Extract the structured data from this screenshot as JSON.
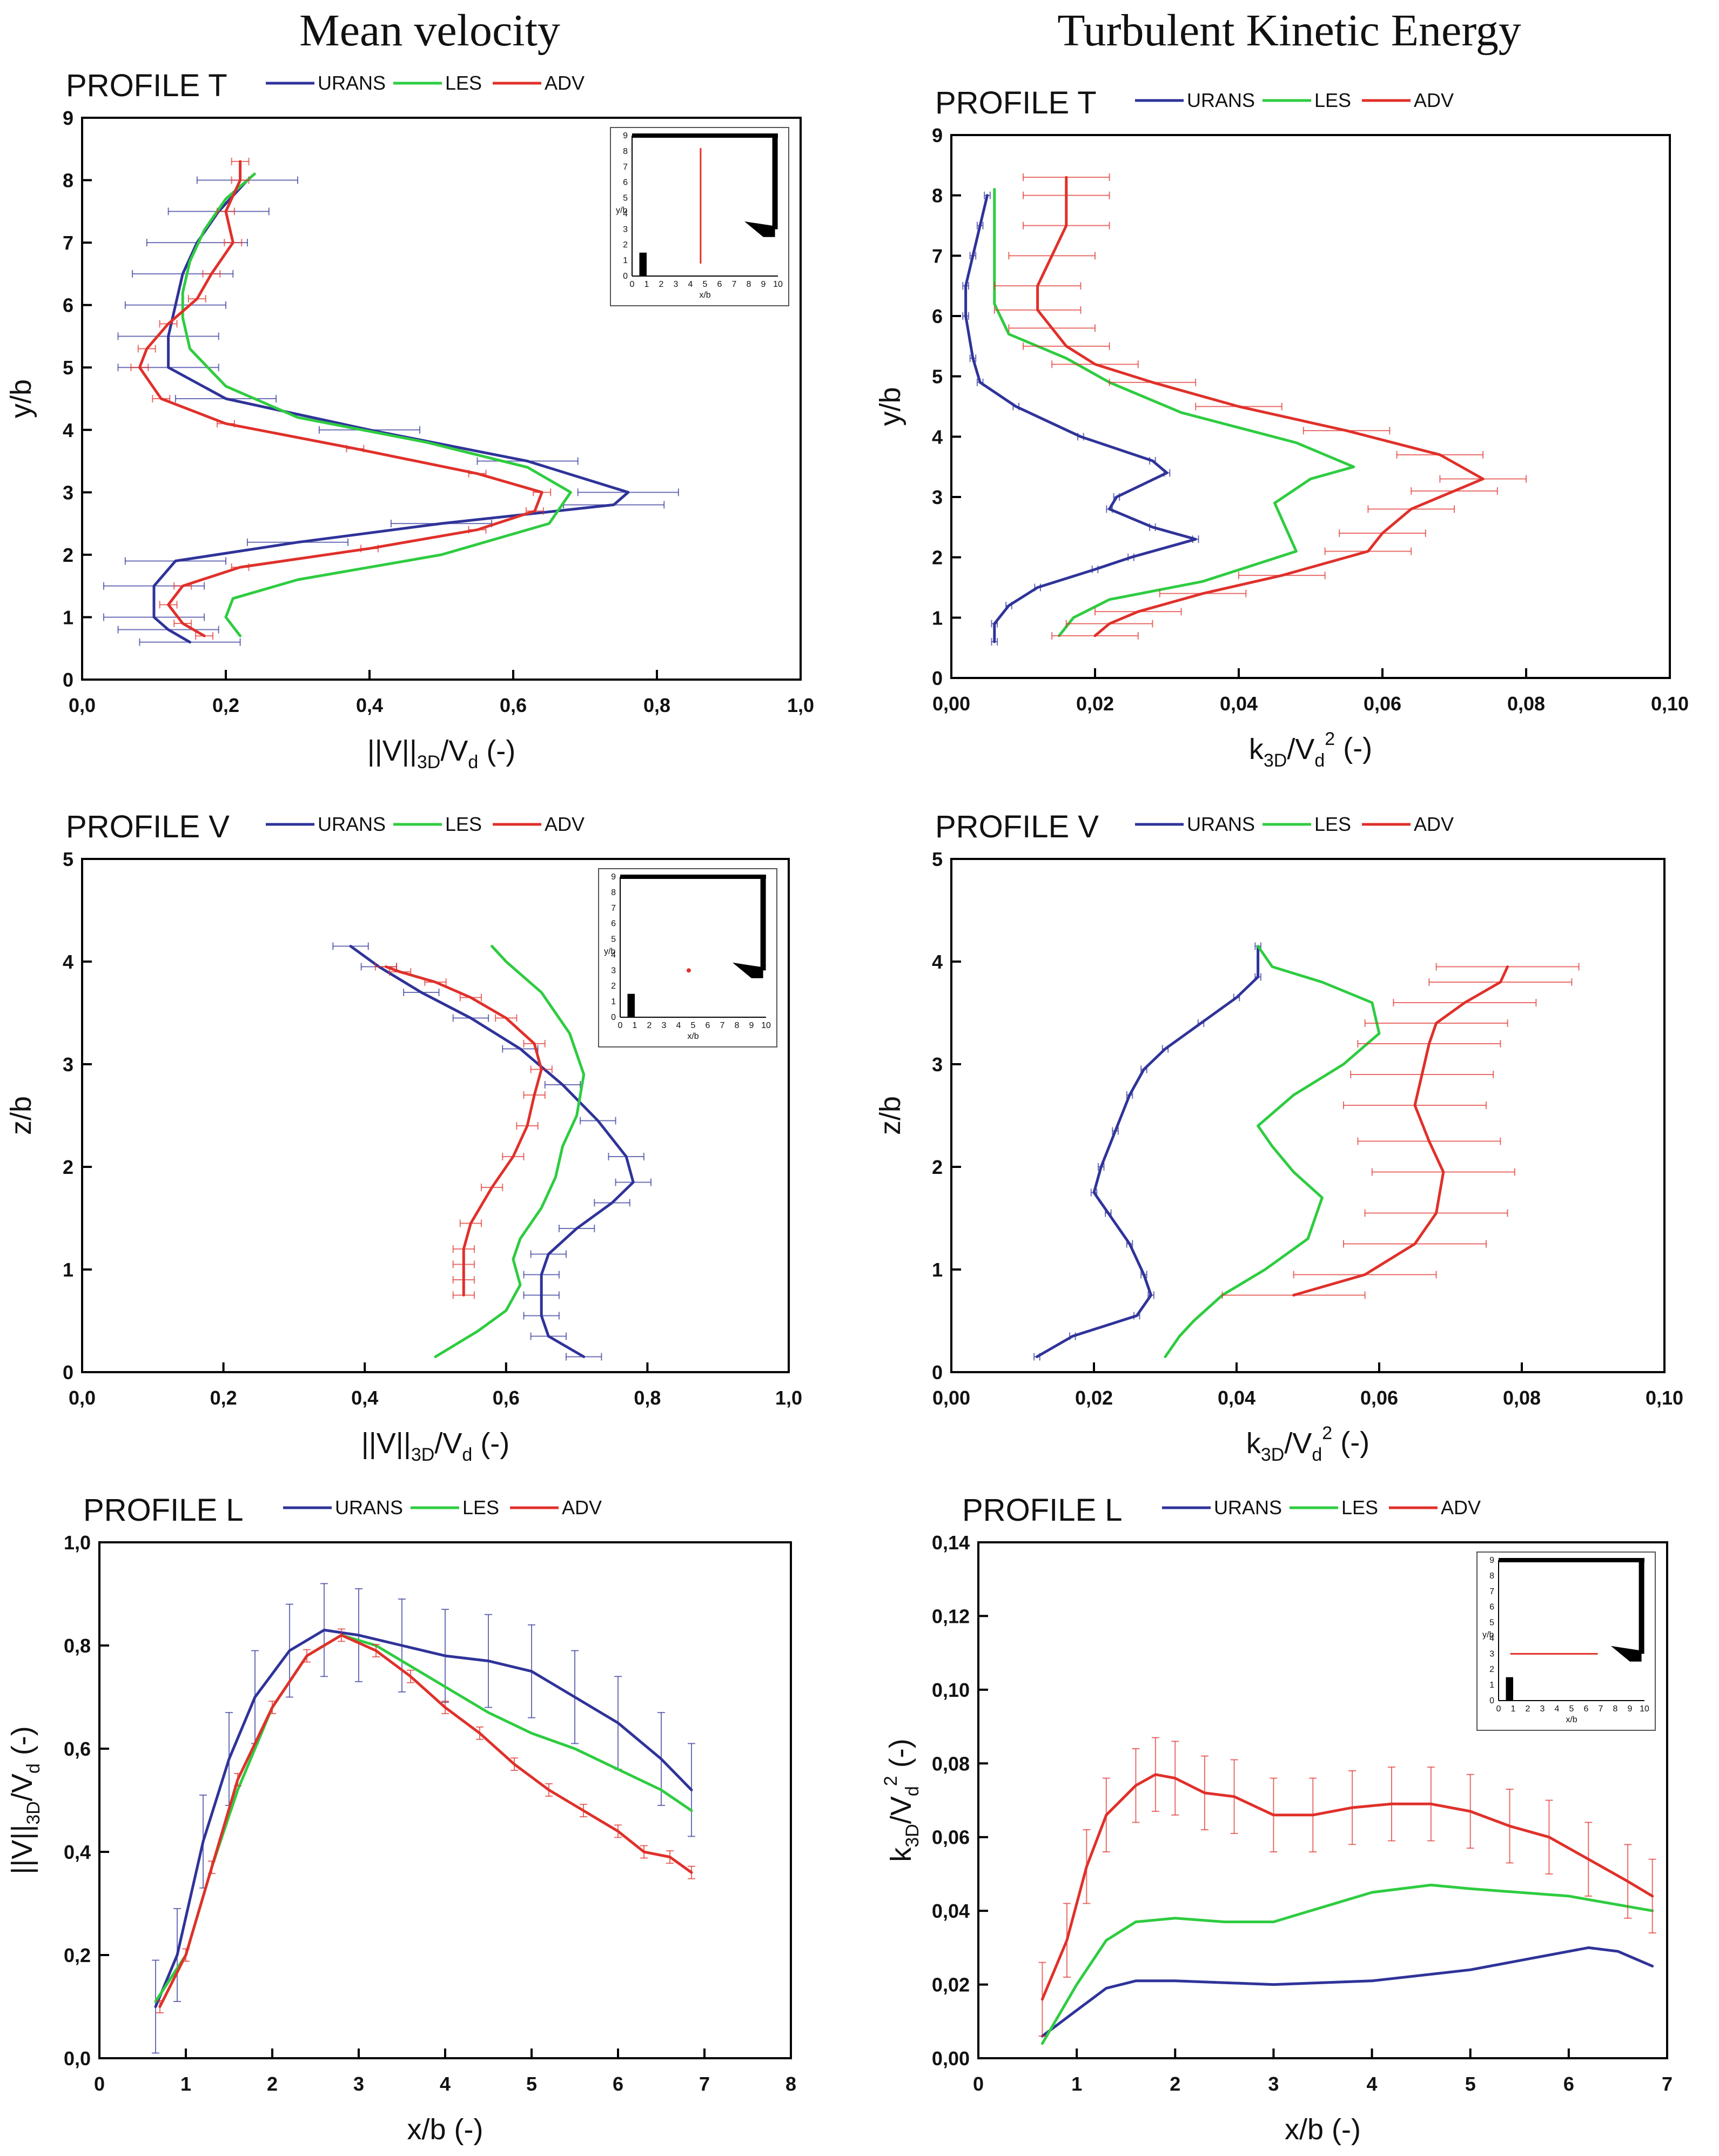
{
  "headers": {
    "left": "Mean velocity",
    "right": "Turbulent Kinetic Energy"
  },
  "colors": {
    "URANS": "#2f3399",
    "LES": "#2ecc40",
    "ADV": "#e0302a"
  },
  "chart_data": [
    {
      "id": "p0",
      "type": "line",
      "title": "PROFILE  T",
      "orientation": "profile",
      "xlabel": "||V||3D/Vd (-)",
      "ylabel": "y/b",
      "xlim": [
        0,
        1.0
      ],
      "ylim": [
        0,
        9
      ],
      "xticks": [
        "0,0",
        "0,2",
        "0,4",
        "0,6",
        "0,8",
        "1,0"
      ],
      "xtickvals": [
        0,
        0.2,
        0.4,
        0.6,
        0.8,
        1.0
      ],
      "yticks": [
        "0",
        "1",
        "2",
        "3",
        "4",
        "5",
        "6",
        "7",
        "8",
        "9"
      ],
      "ytickvals": [
        0,
        1,
        2,
        3,
        4,
        5,
        6,
        7,
        8,
        9
      ],
      "legend": [
        "URANS",
        "LES",
        "ADV"
      ],
      "inset": {
        "type": "T",
        "ylabel": "y/b",
        "xlabel": "x/b"
      },
      "series": [
        {
          "name": "URANS",
          "errors": true,
          "err": 0.07,
          "x": [
            0.15,
            0.12,
            0.1,
            0.1,
            0.13,
            0.3,
            0.5,
            0.74,
            0.76,
            0.62,
            0.4,
            0.2,
            0.12,
            0.12,
            0.13,
            0.14,
            0.16,
            0.19,
            0.23
          ],
          "y": [
            0.6,
            0.8,
            1.0,
            1.5,
            1.9,
            2.2,
            2.5,
            2.8,
            3.0,
            3.5,
            4.0,
            4.5,
            5.0,
            5.5,
            6.0,
            6.5,
            7.0,
            7.5,
            8.0
          ]
        },
        {
          "name": "LES",
          "errors": false,
          "x": [
            0.22,
            0.2,
            0.21,
            0.3,
            0.5,
            0.65,
            0.68,
            0.62,
            0.48,
            0.3,
            0.2,
            0.15,
            0.14,
            0.14,
            0.15,
            0.17,
            0.2,
            0.24
          ],
          "y": [
            0.7,
            1.0,
            1.3,
            1.6,
            2.0,
            2.5,
            3.0,
            3.4,
            3.8,
            4.2,
            4.7,
            5.3,
            5.8,
            6.2,
            6.7,
            7.2,
            7.7,
            8.1
          ]
        },
        {
          "name": "ADV",
          "errors": true,
          "err": 0.012,
          "x": [
            0.17,
            0.14,
            0.12,
            0.14,
            0.22,
            0.4,
            0.55,
            0.63,
            0.64,
            0.55,
            0.38,
            0.2,
            0.11,
            0.08,
            0.09,
            0.12,
            0.16,
            0.18,
            0.21,
            0.2,
            0.22,
            0.22
          ],
          "y": [
            0.7,
            0.9,
            1.2,
            1.5,
            1.8,
            2.1,
            2.4,
            2.7,
            3.0,
            3.3,
            3.7,
            4.1,
            4.5,
            5.0,
            5.3,
            5.7,
            6.1,
            6.5,
            7.0,
            7.5,
            8.0,
            8.3
          ]
        }
      ]
    },
    {
      "id": "p1",
      "type": "line",
      "title": "PROFILE  T",
      "orientation": "profile",
      "xlabel": "k3D/Vd² (-)",
      "ylabel": "y/b",
      "xlim": [
        0,
        0.1
      ],
      "ylim": [
        0,
        9
      ],
      "xticks": [
        "0,00",
        "0,02",
        "0,04",
        "0,06",
        "0,08",
        "0,10"
      ],
      "xtickvals": [
        0,
        0.02,
        0.04,
        0.06,
        0.08,
        0.1
      ],
      "yticks": [
        "0",
        "1",
        "2",
        "3",
        "4",
        "5",
        "6",
        "7",
        "8",
        "9"
      ],
      "ytickvals": [
        0,
        1,
        2,
        3,
        4,
        5,
        6,
        7,
        8,
        9
      ],
      "legend": [
        "URANS",
        "LES",
        "ADV"
      ],
      "series": [
        {
          "name": "URANS",
          "errors": true,
          "err": 0.0004,
          "x": [
            0.006,
            0.006,
            0.008,
            0.012,
            0.02,
            0.025,
            0.034,
            0.028,
            0.022,
            0.023,
            0.03,
            0.028,
            0.018,
            0.009,
            0.004,
            0.003,
            0.002,
            0.002,
            0.003,
            0.004,
            0.005
          ],
          "y": [
            0.6,
            0.9,
            1.2,
            1.5,
            1.8,
            2.0,
            2.3,
            2.5,
            2.8,
            3.0,
            3.4,
            3.6,
            4.0,
            4.5,
            4.9,
            5.3,
            6.0,
            6.5,
            7.0,
            7.5,
            8.0
          ]
        },
        {
          "name": "LES",
          "errors": false,
          "x": [
            0.015,
            0.017,
            0.022,
            0.035,
            0.048,
            0.045,
            0.05,
            0.056,
            0.048,
            0.032,
            0.022,
            0.016,
            0.008,
            0.006,
            0.006,
            0.006
          ],
          "y": [
            0.7,
            1.0,
            1.3,
            1.6,
            2.1,
            2.9,
            3.3,
            3.5,
            3.9,
            4.4,
            4.9,
            5.3,
            5.7,
            6.2,
            7.0,
            8.1
          ]
        },
        {
          "name": "ADV",
          "errors": true,
          "err": 0.006,
          "x": [
            0.02,
            0.022,
            0.026,
            0.035,
            0.046,
            0.058,
            0.06,
            0.064,
            0.07,
            0.074,
            0.068,
            0.055,
            0.04,
            0.028,
            0.02,
            0.016,
            0.014,
            0.012,
            0.012,
            0.014,
            0.016,
            0.016,
            0.016
          ],
          "y": [
            0.7,
            0.9,
            1.1,
            1.4,
            1.7,
            2.1,
            2.4,
            2.8,
            3.1,
            3.3,
            3.7,
            4.1,
            4.5,
            4.9,
            5.2,
            5.5,
            5.8,
            6.1,
            6.5,
            7.0,
            7.5,
            8.0,
            8.3
          ]
        }
      ]
    },
    {
      "id": "p2",
      "type": "line",
      "title": "PROFILE  V",
      "orientation": "profile",
      "xlabel": "||V||3D/Vd (-)",
      "ylabel": "z/b",
      "xlim": [
        0,
        1.0
      ],
      "ylim": [
        0,
        5
      ],
      "xticks": [
        "0,0",
        "0,2",
        "0,4",
        "0,6",
        "0,8",
        "1,0"
      ],
      "xtickvals": [
        0,
        0.2,
        0.4,
        0.6,
        0.8,
        1.0
      ],
      "yticks": [
        "0",
        "1",
        "2",
        "3",
        "4",
        "5"
      ],
      "ytickvals": [
        0,
        1,
        2,
        3,
        4,
        5
      ],
      "legend": [
        "URANS",
        "LES",
        "ADV"
      ],
      "inset": {
        "type": "V",
        "ylabel": "y/b",
        "xlabel": "x/b"
      },
      "series": [
        {
          "name": "URANS",
          "errors": true,
          "err": 0.025,
          "x": [
            0.71,
            0.66,
            0.65,
            0.65,
            0.65,
            0.66,
            0.7,
            0.75,
            0.78,
            0.77,
            0.73,
            0.68,
            0.62,
            0.55,
            0.48,
            0.42,
            0.38
          ],
          "y": [
            0.15,
            0.35,
            0.55,
            0.75,
            0.95,
            1.15,
            1.4,
            1.65,
            1.85,
            2.1,
            2.45,
            2.8,
            3.15,
            3.45,
            3.7,
            3.95,
            4.15
          ]
        },
        {
          "name": "LES",
          "errors": false,
          "x": [
            0.5,
            0.56,
            0.6,
            0.62,
            0.61,
            0.62,
            0.65,
            0.67,
            0.68,
            0.7,
            0.71,
            0.69,
            0.65,
            0.6,
            0.58
          ],
          "y": [
            0.15,
            0.4,
            0.6,
            0.85,
            1.1,
            1.3,
            1.6,
            1.9,
            2.2,
            2.5,
            2.9,
            3.3,
            3.7,
            4.0,
            4.15
          ]
        },
        {
          "name": "ADV",
          "errors": true,
          "err": 0.015,
          "x": [
            0.54,
            0.54,
            0.54,
            0.54,
            0.55,
            0.58,
            0.61,
            0.63,
            0.64,
            0.65,
            0.64,
            0.6,
            0.55,
            0.5,
            0.45,
            0.43
          ],
          "y": [
            0.75,
            0.9,
            1.05,
            1.2,
            1.45,
            1.8,
            2.1,
            2.4,
            2.7,
            2.95,
            3.2,
            3.45,
            3.65,
            3.8,
            3.9,
            3.95
          ]
        }
      ]
    },
    {
      "id": "p3",
      "type": "line",
      "title": "PROFILE  V",
      "orientation": "profile",
      "xlabel": "k3D/Vd² (-)",
      "ylabel": "z/b",
      "xlim": [
        0,
        0.1
      ],
      "ylim": [
        0,
        5
      ],
      "xticks": [
        "0,00",
        "0,02",
        "0,04",
        "0,06",
        "0,08",
        "0,10"
      ],
      "xtickvals": [
        0,
        0.02,
        0.04,
        0.06,
        0.08,
        0.1
      ],
      "yticks": [
        "0",
        "1",
        "2",
        "3",
        "4",
        "5"
      ],
      "ytickvals": [
        0,
        1,
        2,
        3,
        4,
        5
      ],
      "legend": [
        "URANS",
        "LES",
        "ADV"
      ],
      "series": [
        {
          "name": "URANS",
          "errors": true,
          "err": 0.0004,
          "x": [
            0.012,
            0.017,
            0.026,
            0.028,
            0.027,
            0.025,
            0.022,
            0.02,
            0.021,
            0.023,
            0.025,
            0.027,
            0.03,
            0.035,
            0.04,
            0.043,
            0.043
          ],
          "y": [
            0.15,
            0.35,
            0.55,
            0.75,
            0.95,
            1.25,
            1.55,
            1.75,
            2.0,
            2.35,
            2.7,
            2.95,
            3.15,
            3.4,
            3.65,
            3.85,
            4.15
          ]
        },
        {
          "name": "LES",
          "errors": false,
          "x": [
            0.03,
            0.032,
            0.034,
            0.038,
            0.044,
            0.05,
            0.052,
            0.048,
            0.045,
            0.043,
            0.048,
            0.055,
            0.06,
            0.059,
            0.052,
            0.045,
            0.043
          ],
          "y": [
            0.15,
            0.35,
            0.5,
            0.75,
            1.0,
            1.3,
            1.7,
            1.95,
            2.2,
            2.4,
            2.7,
            3.0,
            3.3,
            3.6,
            3.8,
            3.95,
            4.15
          ]
        },
        {
          "name": "ADV",
          "errors": true,
          "err": 0.01,
          "x": [
            0.048,
            0.058,
            0.065,
            0.068,
            0.069,
            0.067,
            0.065,
            0.066,
            0.067,
            0.068,
            0.072,
            0.077,
            0.078
          ],
          "y": [
            0.75,
            0.95,
            1.25,
            1.55,
            1.95,
            2.25,
            2.6,
            2.9,
            3.2,
            3.4,
            3.6,
            3.8,
            3.95
          ]
        }
      ]
    },
    {
      "id": "p4",
      "type": "line",
      "title": "PROFILE  L",
      "orientation": "series",
      "xlabel": "x/b (-)",
      "ylabel": "||V||3D/Vd (-)",
      "xlim": [
        0,
        8
      ],
      "ylim": [
        0,
        1.0
      ],
      "xticks": [
        "0",
        "1",
        "2",
        "3",
        "4",
        "5",
        "6",
        "7",
        "8"
      ],
      "xtickvals": [
        0,
        1,
        2,
        3,
        4,
        5,
        6,
        7,
        8
      ],
      "yticks": [
        "0,0",
        "0,2",
        "0,4",
        "0,6",
        "0,8",
        "1,0"
      ],
      "ytickvals": [
        0,
        0.2,
        0.4,
        0.6,
        0.8,
        1.0
      ],
      "legend": [
        "URANS",
        "LES",
        "ADV"
      ],
      "series": [
        {
          "name": "URANS",
          "errors": true,
          "err": 0.09,
          "x": [
            0.65,
            0.9,
            1.2,
            1.5,
            1.8,
            2.2,
            2.6,
            3.0,
            3.5,
            4.0,
            4.5,
            5.0,
            5.5,
            6.0,
            6.5,
            6.85
          ],
          "y": [
            0.1,
            0.2,
            0.42,
            0.58,
            0.7,
            0.79,
            0.83,
            0.82,
            0.8,
            0.78,
            0.77,
            0.75,
            0.7,
            0.65,
            0.58,
            0.52
          ]
        },
        {
          "name": "LES",
          "errors": false,
          "x": [
            0.65,
            1.0,
            1.3,
            1.6,
            2.0,
            2.4,
            2.8,
            3.2,
            3.6,
            4.0,
            4.5,
            5.0,
            5.5,
            6.0,
            6.5,
            6.85
          ],
          "y": [
            0.11,
            0.2,
            0.37,
            0.52,
            0.68,
            0.78,
            0.82,
            0.8,
            0.76,
            0.72,
            0.67,
            0.63,
            0.6,
            0.56,
            0.52,
            0.48
          ]
        },
        {
          "name": "ADV",
          "errors": true,
          "err": 0.012,
          "x": [
            0.7,
            1.0,
            1.3,
            1.6,
            2.0,
            2.4,
            2.8,
            3.2,
            3.6,
            4.0,
            4.4,
            4.8,
            5.2,
            5.6,
            6.0,
            6.3,
            6.6,
            6.85
          ],
          "y": [
            0.1,
            0.2,
            0.37,
            0.54,
            0.68,
            0.78,
            0.82,
            0.79,
            0.74,
            0.68,
            0.63,
            0.57,
            0.52,
            0.48,
            0.44,
            0.4,
            0.39,
            0.36
          ]
        }
      ]
    },
    {
      "id": "p5",
      "type": "line",
      "title": "PROFILE  L",
      "orientation": "series",
      "xlabel": "x/b (-)",
      "ylabel": "k3D/Vd² (-)",
      "xlim": [
        0,
        7
      ],
      "ylim": [
        0,
        0.14
      ],
      "xticks": [
        "0",
        "1",
        "2",
        "3",
        "4",
        "5",
        "6",
        "7"
      ],
      "xtickvals": [
        0,
        1,
        2,
        3,
        4,
        5,
        6,
        7
      ],
      "yticks": [
        "0,00",
        "0,02",
        "0,04",
        "0,06",
        "0,08",
        "0,10",
        "0,12",
        "0,14"
      ],
      "ytickvals": [
        0,
        0.02,
        0.04,
        0.06,
        0.08,
        0.1,
        0.12,
        0.14
      ],
      "legend": [
        "URANS",
        "LES",
        "ADV"
      ],
      "inset": {
        "type": "L",
        "ylabel": "y/b",
        "xlabel": "x/b"
      },
      "series": [
        {
          "name": "URANS",
          "errors": false,
          "x": [
            0.65,
            1.0,
            1.3,
            1.6,
            2.0,
            3.0,
            4.0,
            5.0,
            5.6,
            6.2,
            6.5,
            6.85
          ],
          "y": [
            0.006,
            0.013,
            0.019,
            0.021,
            0.021,
            0.02,
            0.021,
            0.024,
            0.027,
            0.03,
            0.029,
            0.025
          ]
        },
        {
          "name": "LES",
          "errors": false,
          "x": [
            0.65,
            1.0,
            1.3,
            1.6,
            2.0,
            2.5,
            3.0,
            3.5,
            4.0,
            4.6,
            5.0,
            6.0,
            6.85
          ],
          "y": [
            0.004,
            0.02,
            0.032,
            0.037,
            0.038,
            0.037,
            0.037,
            0.041,
            0.045,
            0.047,
            0.046,
            0.044,
            0.04
          ]
        },
        {
          "name": "ADV",
          "errors": true,
          "err": 0.01,
          "x": [
            0.65,
            0.9,
            1.1,
            1.3,
            1.6,
            1.8,
            2.0,
            2.3,
            2.6,
            3.0,
            3.4,
            3.8,
            4.2,
            4.6,
            5.0,
            5.4,
            5.8,
            6.2,
            6.6,
            6.85
          ],
          "y": [
            0.016,
            0.032,
            0.052,
            0.066,
            0.074,
            0.077,
            0.076,
            0.072,
            0.071,
            0.066,
            0.066,
            0.068,
            0.069,
            0.069,
            0.067,
            0.063,
            0.06,
            0.054,
            0.048,
            0.044
          ]
        }
      ]
    }
  ]
}
